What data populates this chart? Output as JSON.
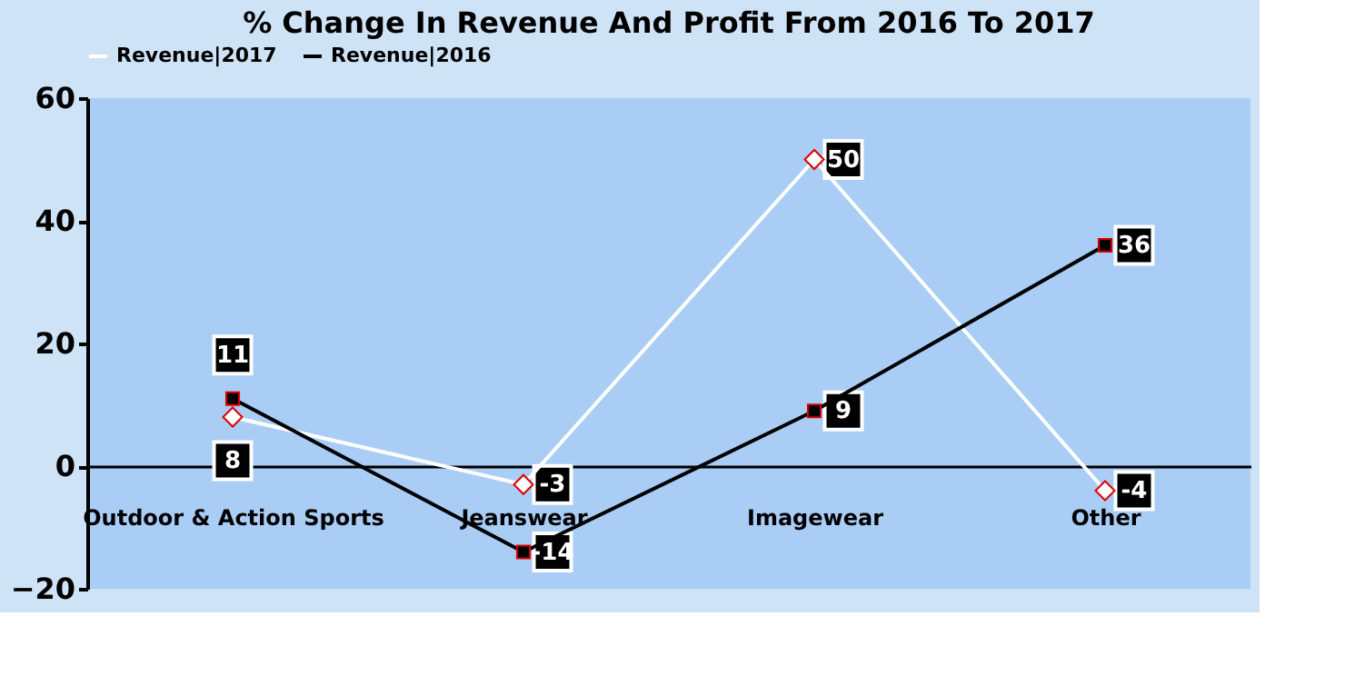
{
  "chart_data": {
    "type": "line",
    "title": "% Change In Revenue And Profit From 2016 To 2017",
    "categories": [
      "Outdoor & Action Sports",
      "Jeanswear",
      "Imagewear",
      "Other"
    ],
    "series": [
      {
        "name": "Revenue|2017",
        "color": "#ffffff",
        "marker": "diamond",
        "values": [
          8,
          -3,
          50,
          -4
        ]
      },
      {
        "name": "Revenue|2016",
        "color": "#000000",
        "marker": "square",
        "values": [
          11,
          -14,
          9,
          36
        ]
      }
    ],
    "ylim": [
      -20,
      60
    ],
    "yticks": [
      -20,
      0,
      20,
      40,
      60
    ],
    "grid": false,
    "legend": "top",
    "data_labels": true,
    "line_style": "solid"
  }
}
